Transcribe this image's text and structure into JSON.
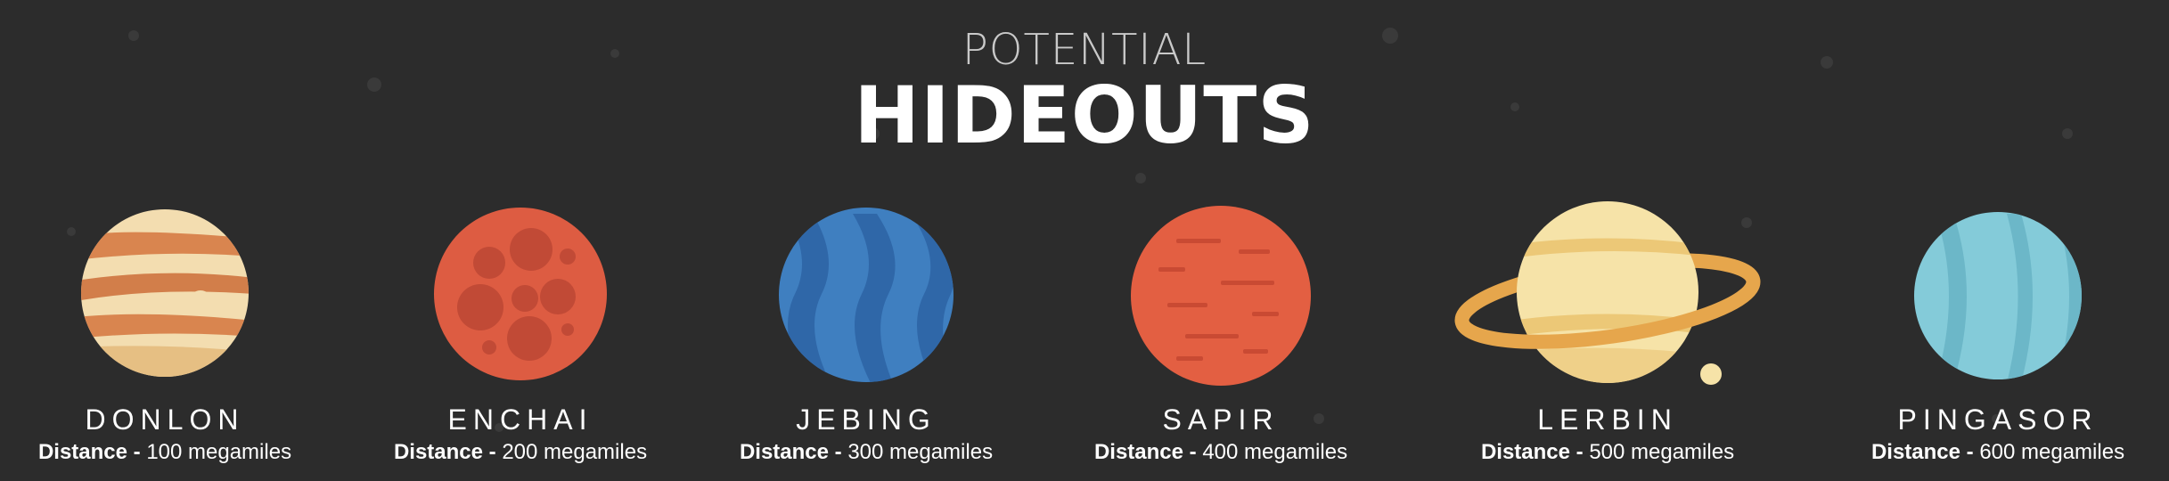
{
  "header": {
    "subtitle": "POTENTIAL",
    "title": "HIDEOUTS"
  },
  "colors": {
    "background": "#2c2c2c",
    "text": "#ffffff"
  },
  "planets": [
    {
      "name": "DONLON",
      "distance_label": "Distance -",
      "distance_value": "100 megamiles"
    },
    {
      "name": "ENCHAI",
      "distance_label": "Distance -",
      "distance_value": "200 megamiles"
    },
    {
      "name": "JEBING",
      "distance_label": "Distance -",
      "distance_value": "300 megamiles"
    },
    {
      "name": "SAPIR",
      "distance_label": "Distance -",
      "distance_value": "400 megamiles"
    },
    {
      "name": "LERBIN",
      "distance_label": "Distance -",
      "distance_value": "500 megamiles"
    },
    {
      "name": "PINGASOR",
      "distance_label": "Distance -",
      "distance_value": "600 megamiles"
    }
  ]
}
